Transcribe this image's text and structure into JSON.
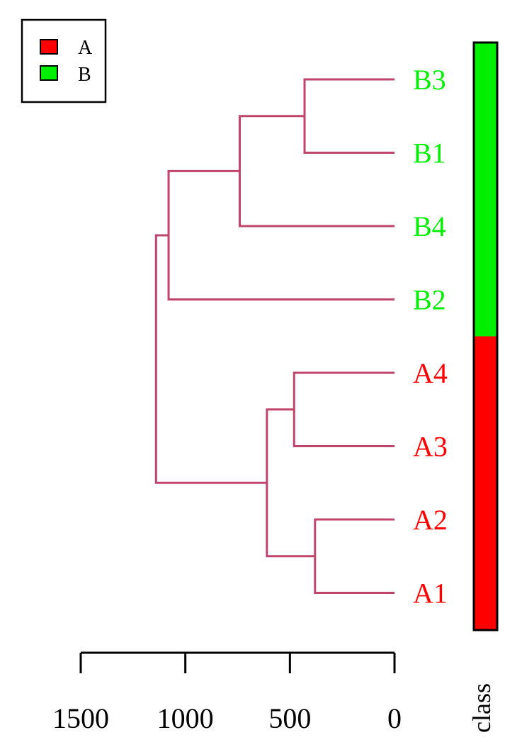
{
  "legend": {
    "entries": [
      {
        "label": "A",
        "color": "#ff0000"
      },
      {
        "label": "B",
        "color": "#00ee00"
      }
    ]
  },
  "dendrogram": {
    "branch_color": "#c0456a",
    "leaves": [
      {
        "label": "B3",
        "class": "B"
      },
      {
        "label": "B1",
        "class": "B"
      },
      {
        "label": "B4",
        "class": "B"
      },
      {
        "label": "B2",
        "class": "B"
      },
      {
        "label": "A4",
        "class": "A"
      },
      {
        "label": "A3",
        "class": "A"
      },
      {
        "label": "A2",
        "class": "A"
      },
      {
        "label": "A1",
        "class": "A"
      }
    ],
    "merges": [
      {
        "left": "B3",
        "right": "B1",
        "height": 430
      },
      {
        "left": "A2",
        "right": "A1",
        "height": 380
      },
      {
        "left": "A4",
        "right": "A3",
        "height": 480
      },
      {
        "left": 0,
        "right": "B4",
        "height": 740
      },
      {
        "left": 1,
        "right": 2,
        "height": 610
      },
      {
        "left": 3,
        "right": "B2",
        "height": 1080
      },
      {
        "left": 5,
        "right": 4,
        "height": 1140
      }
    ]
  },
  "axis": {
    "ticks": [
      1500,
      1000,
      500,
      0
    ],
    "range": [
      1500,
      0
    ]
  },
  "class_bar": {
    "label": "class",
    "colors": {
      "A": "#ff0000",
      "B": "#00ee00"
    }
  }
}
